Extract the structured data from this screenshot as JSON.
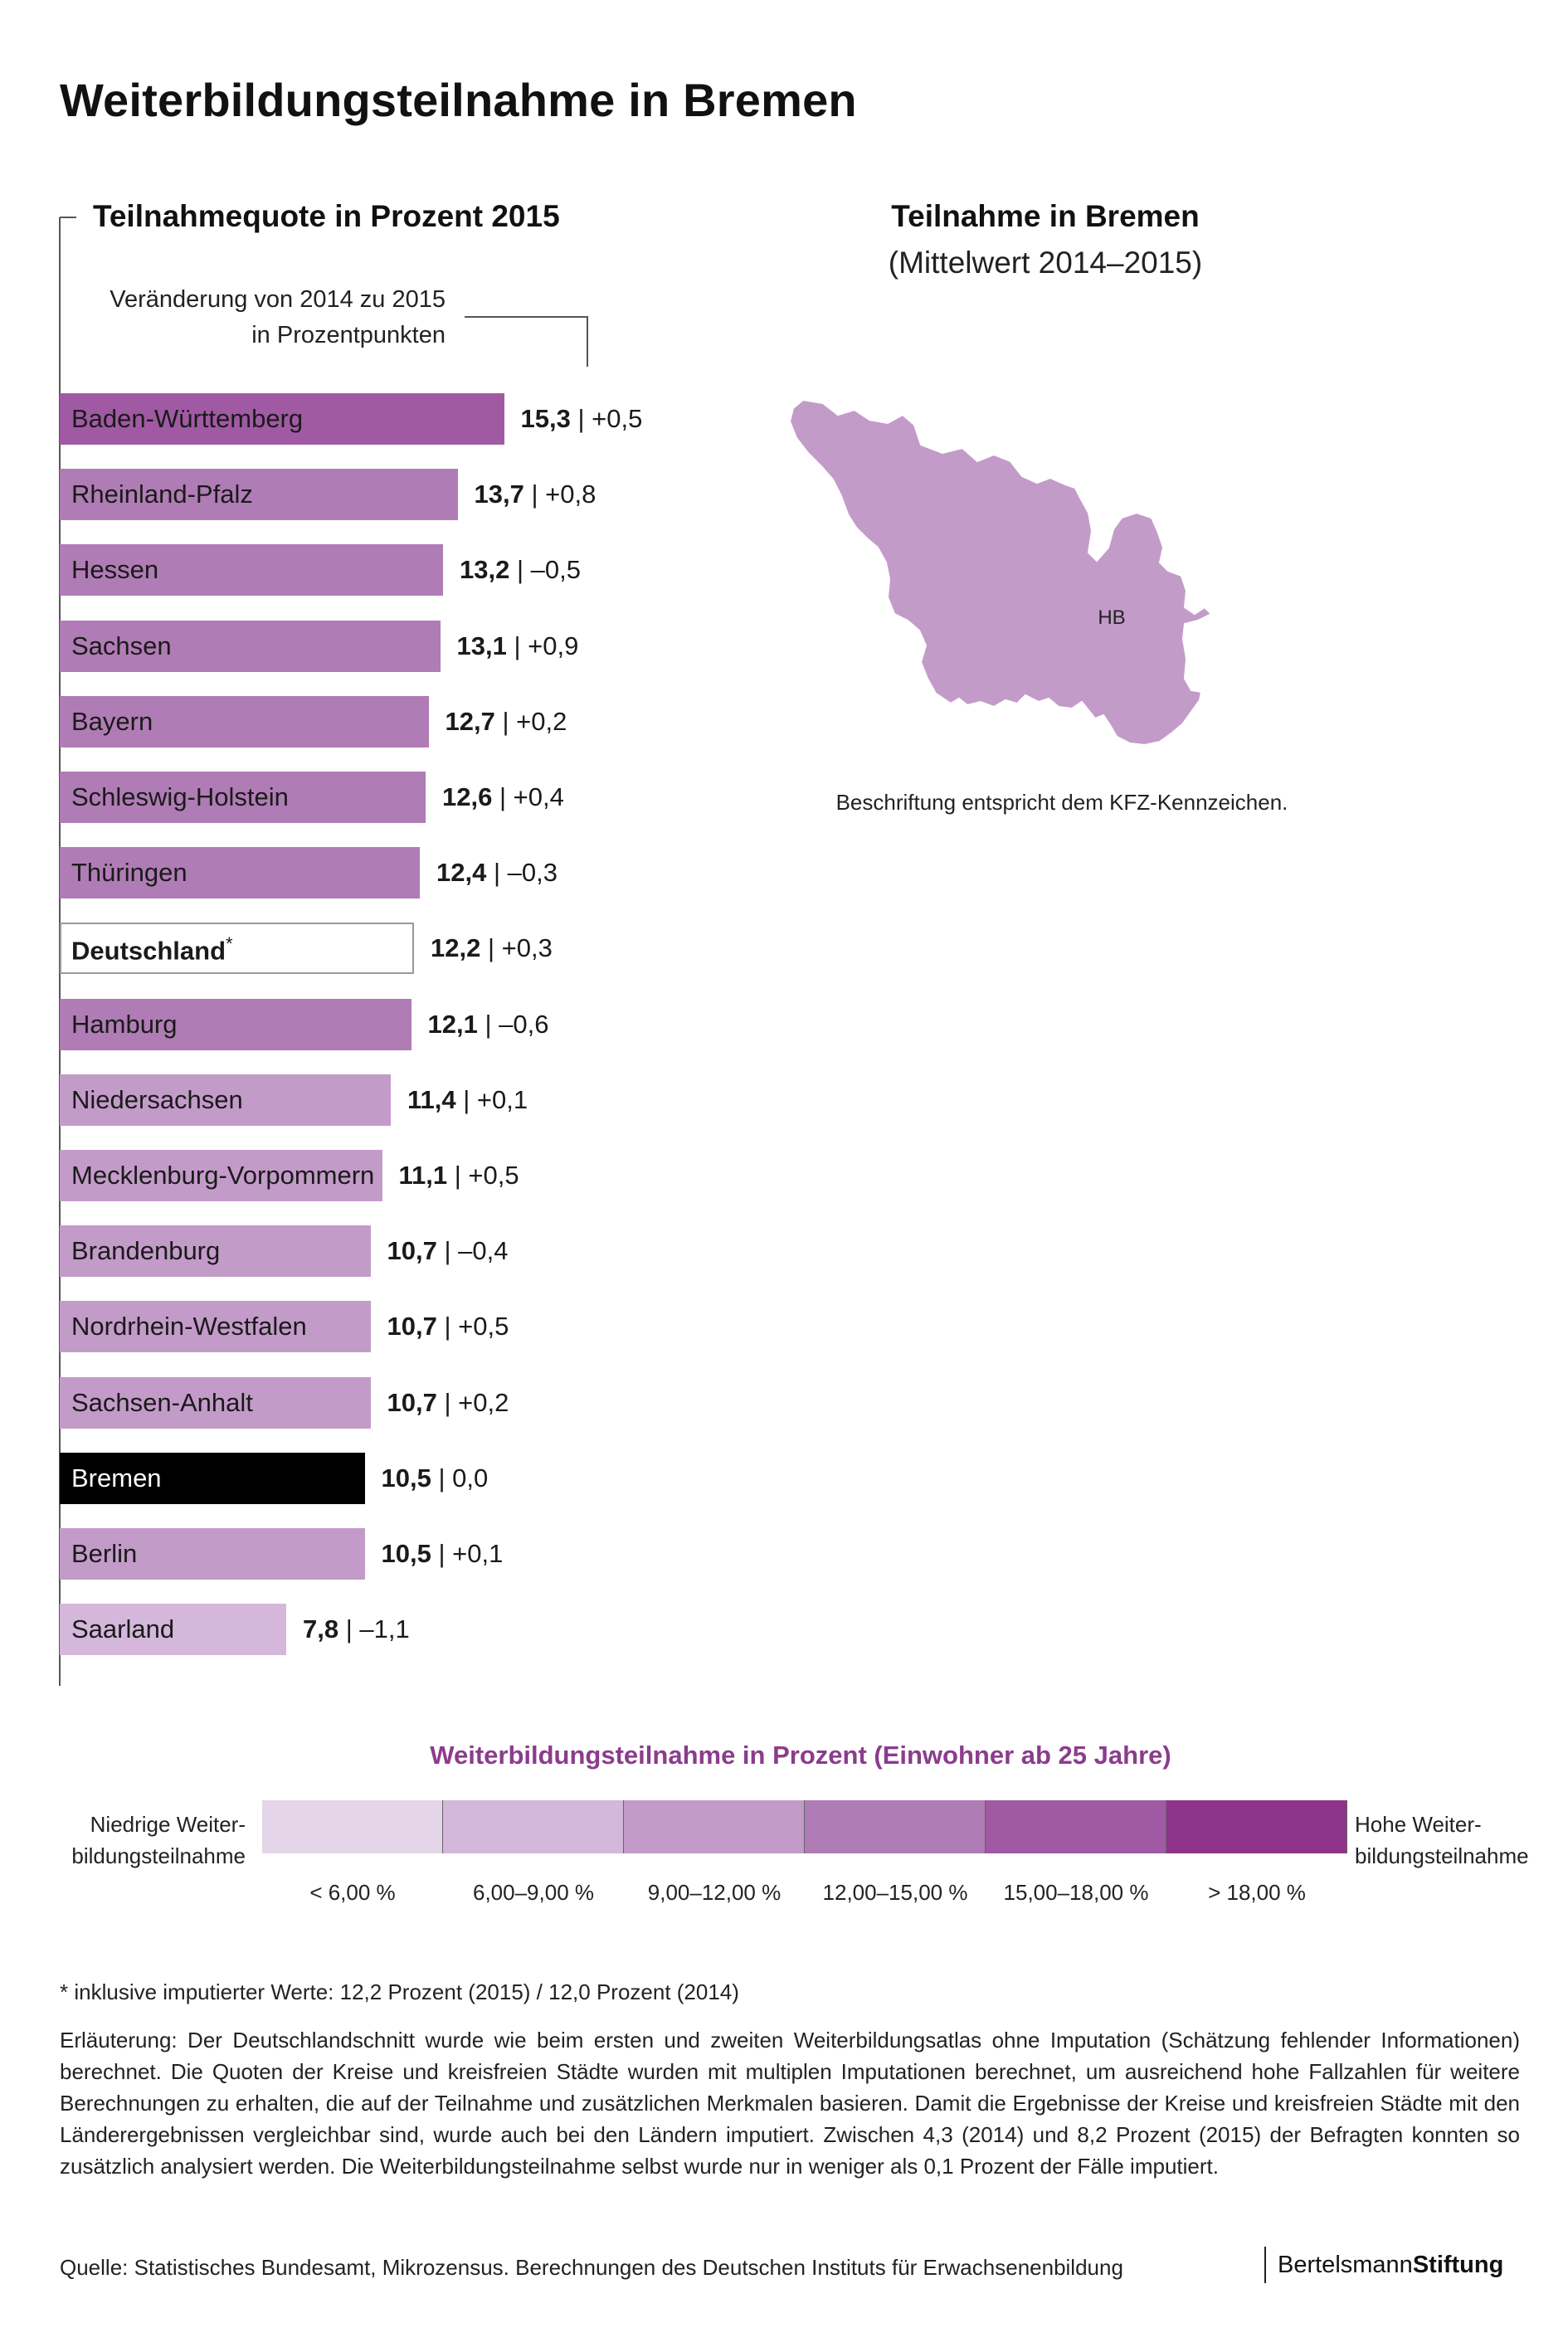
{
  "title": "Weiterbildungsteilnahme in Bremen",
  "chart_data": {
    "type": "bar",
    "orientation": "horizontal",
    "title": "Teilnahmequote in Prozent 2015",
    "change_note": {
      "line1": "Veränderung von 2014 zu 2015",
      "line2": "in Prozentpunkten"
    },
    "xlim": [
      0,
      18
    ],
    "categories": [
      "Baden-Württemberg",
      "Rheinland-Pfalz",
      "Hessen",
      "Sachsen",
      "Bayern",
      "Schleswig-Holstein",
      "Thüringen",
      "Deutschland",
      "Hamburg",
      "Niedersachsen",
      "Mecklenburg-Vorpommern",
      "Brandenburg",
      "Nordrhein-Westfalen",
      "Sachsen-Anhalt",
      "Bremen",
      "Berlin",
      "Saarland"
    ],
    "values": [
      15.3,
      13.7,
      13.2,
      13.1,
      12.7,
      12.6,
      12.4,
      12.2,
      12.1,
      11.4,
      11.1,
      10.7,
      10.7,
      10.7,
      10.5,
      10.5,
      7.8
    ],
    "value_labels": [
      "15,3",
      "13,7",
      "13,2",
      "13,1",
      "12,7",
      "12,6",
      "12,4",
      "12,2",
      "12,1",
      "11,4",
      "11,1",
      "10,7",
      "10,7",
      "10,7",
      "10,5",
      "10,5",
      "7,8"
    ],
    "change_labels": [
      "+0,5",
      "+0,8",
      "–0,5",
      "+0,9",
      "+0,2",
      "+0,4",
      "–0,3",
      "+0,3",
      "–0,6",
      "+0,1",
      "+0,5",
      "–0,4",
      "+0,5",
      "+0,2",
      "0,0",
      "+0,1",
      "–1,1"
    ],
    "national_marker": "*",
    "highlight": "Bremen"
  },
  "map": {
    "title": "Teilnahme in Bremen",
    "subtitle": "(Mittelwert 2014–2015)",
    "region_label": "HB",
    "caption": "Beschriftung entspricht dem KFZ-Kennzeichen.",
    "fill_color": "#c39bc9"
  },
  "legend": {
    "title": "Weiterbildungsteilnahme in Prozent (Einwohner ab 25 Jahre)",
    "low_label": "Niedrige Weiter-\nbildungsteilnahme",
    "low_line1": "Niedrige Weiter-",
    "low_line2": "bildungsteilnahme",
    "high_line1": "Hohe Weiter-",
    "high_line2": "bildungsteilnahme",
    "classes": [
      {
        "label": "< 6,00 %",
        "color": "#e4d5e8"
      },
      {
        "label": "6,00–9,00 %",
        "color": "#d4b7da"
      },
      {
        "label": "9,00–12,00 %",
        "color": "#c39bc9"
      },
      {
        "label": "12,00–15,00 %",
        "color": "#b07cb5"
      },
      {
        "label": "15,00–18,00 %",
        "color": "#a05aa4"
      },
      {
        "label": "> 18,00 %",
        "color": "#8e3589"
      }
    ]
  },
  "footnote": "* inklusive imputierter Werte: 12,2 Prozent (2015) / 12,0 Prozent (2014)",
  "explanation": "Erläuterung: Der Deutschlandschnitt wurde wie beim ersten und zweiten Weiterbildungsatlas ohne Imputation (Schätzung fehlender Informatio­nen) berechnet. Die Quoten der Kreise und kreisfreien Städte wurden mit multiplen Imputationen berechnet, um ausreichend hohe Fallzahlen für weitere Berechnungen zu erhalten, die auf der Teilnahme und zusätzlichen Merkmalen basieren. Damit die Ergebnisse der Kreise und kreisfreien Städte mit den Länderergebnissen vergleichbar sind, wurde auch bei den Ländern imputiert. Zwischen 4,3 (2014) und 8,2 Prozent (2015) der Be­fragten konnten so zusätzlich analysiert werden. Die Weiterbildungsteilnahme selbst wurde nur in weniger als 0,1 Prozent der Fälle imputiert.",
  "source": "Quelle: Statistisches Bundesamt, Mikrozensus. Berechnungen des Deutschen Instituts für Erwachsenenbildung",
  "brand": {
    "part1": "Bertelsmann",
    "part2": "Stiftung"
  }
}
